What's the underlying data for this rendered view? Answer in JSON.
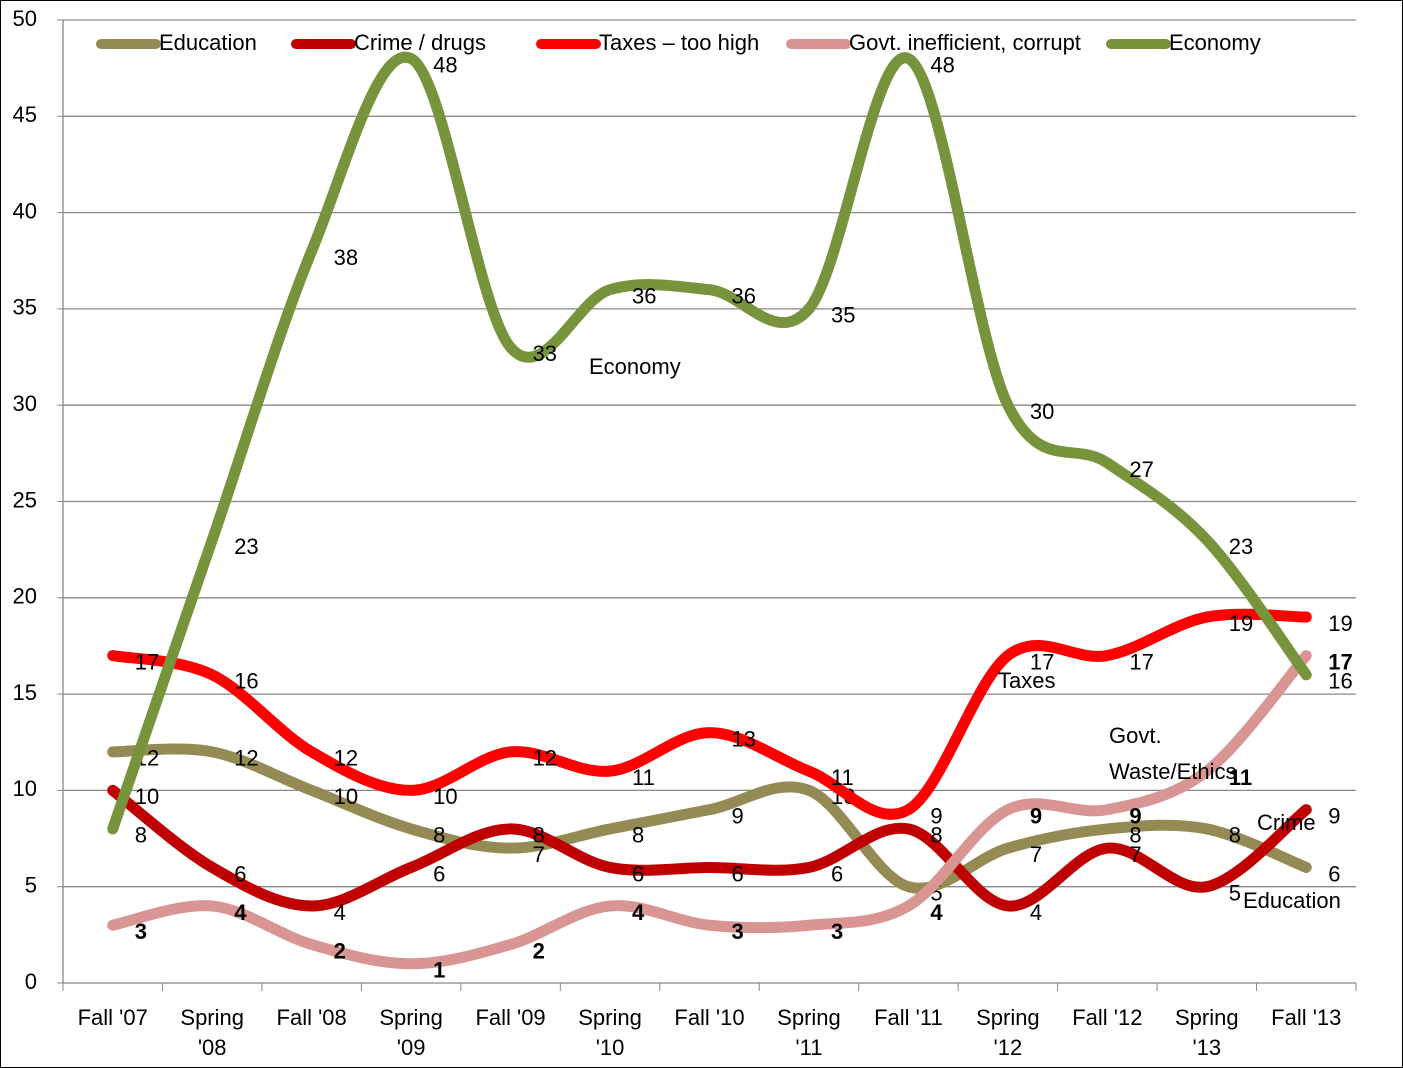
{
  "chart_data": {
    "type": "line",
    "categories": [
      "Fall '07",
      "Spring '08",
      "Fall '08",
      "Spring '09",
      "Fall '09",
      "Spring '10",
      "Fall '10",
      "Spring '11",
      "Fall '11",
      "Spring '12",
      "Fall '12",
      "Spring '13",
      "Fall '13"
    ],
    "series": [
      {
        "name": "Education",
        "color": "#948a54",
        "values": [
          12,
          12,
          10,
          8,
          7,
          8,
          9,
          10,
          5,
          7,
          8,
          8,
          6
        ]
      },
      {
        "name": "Crime / drugs",
        "color": "#c00000",
        "values": [
          10,
          6,
          4,
          6,
          8,
          6,
          6,
          6,
          8,
          4,
          7,
          5,
          9
        ]
      },
      {
        "name": "Taxes – too high",
        "color": "#ff0000",
        "values": [
          17,
          16,
          12,
          10,
          12,
          11,
          13,
          11,
          9,
          17,
          17,
          19,
          19
        ]
      },
      {
        "name": "Govt. inefficient, corrupt",
        "color": "#d99594",
        "values": [
          3,
          4,
          2,
          1,
          2,
          4,
          3,
          3,
          4,
          9,
          9,
          11,
          17
        ],
        "font_weight": "bold"
      },
      {
        "name": "Economy",
        "color": "#77933c",
        "values": [
          8,
          23,
          38,
          48,
          33,
          36,
          36,
          35,
          48,
          30,
          27,
          23,
          16
        ]
      }
    ],
    "annotations": [
      "Economy",
      "Taxes",
      "Govt. Waste/Ethics",
      "Crime",
      "Education"
    ],
    "ylim": [
      0,
      50
    ],
    "yticks": [
      0,
      5,
      10,
      15,
      20,
      25,
      30,
      35,
      40,
      45,
      50
    ],
    "grid": true,
    "legend": "top"
  }
}
